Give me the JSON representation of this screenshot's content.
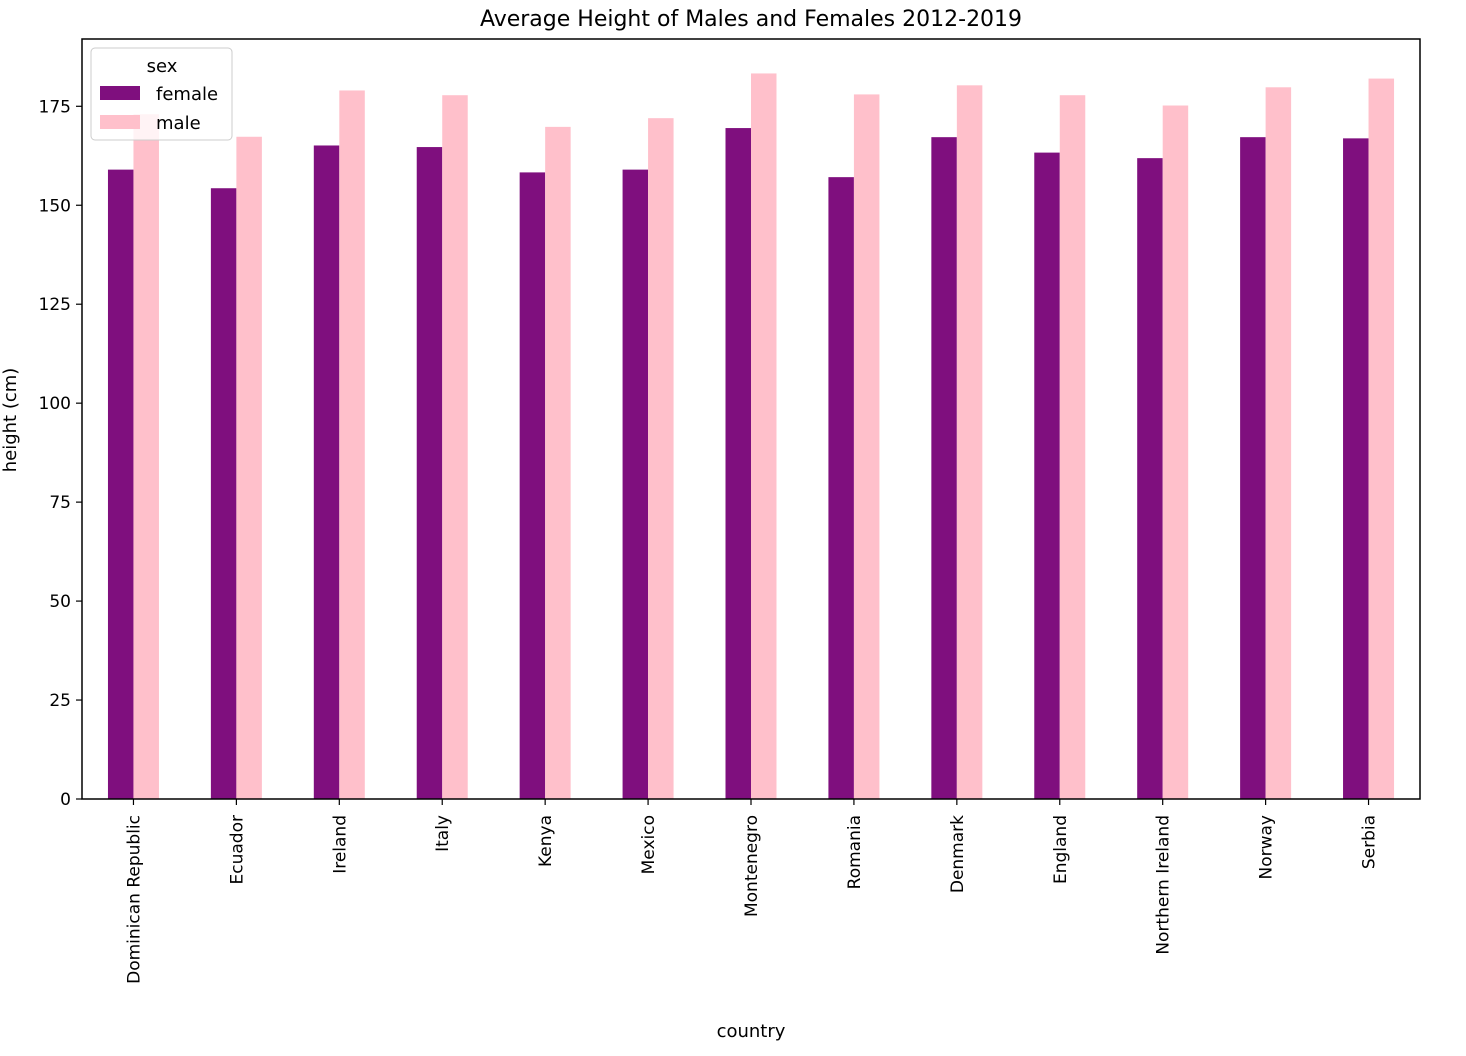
{
  "chart_data": {
    "type": "bar",
    "title": "Average Height of Males and Females 2012-2019",
    "xlabel": "country",
    "ylabel": "height (cm)",
    "ylim": [
      0,
      192
    ],
    "yticks": [
      0,
      25,
      50,
      75,
      100,
      125,
      150,
      175
    ],
    "grid": false,
    "legend": {
      "title": "sex",
      "placement": "top-left"
    },
    "categories": [
      "Dominican Republic",
      "Ecuador",
      "Ireland",
      "Italy",
      "Kenya",
      "Mexico",
      "Montenegro",
      "Romania",
      "Denmark",
      "England",
      "Northern Ireland",
      "Norway",
      "Serbia"
    ],
    "series": [
      {
        "name": "female",
        "color": "#7f0f7e",
        "values": [
          159.0,
          154.3,
          165.1,
          164.7,
          158.3,
          159.0,
          169.5,
          157.1,
          167.2,
          163.3,
          161.9,
          167.2,
          166.9
        ]
      },
      {
        "name": "male",
        "color": "#ffc0cb",
        "values": [
          173.0,
          167.3,
          179.0,
          177.8,
          169.8,
          172.0,
          183.3,
          178.0,
          180.3,
          177.8,
          175.2,
          179.8,
          182.0
        ]
      }
    ]
  }
}
